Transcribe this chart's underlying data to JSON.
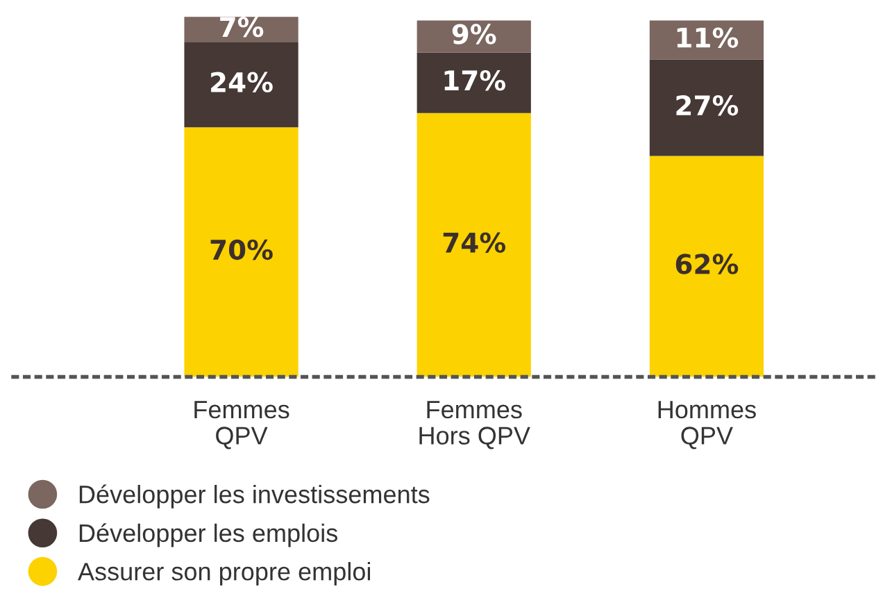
{
  "chart_data": {
    "type": "bar",
    "stacked": true,
    "categories": [
      "Femmes\nQPV",
      "Femmes\nHors QPV",
      "Hommes\nQPV"
    ],
    "series": [
      {
        "name": "Assurer son propre emploi",
        "color": "#fcd200",
        "values": [
          70,
          74,
          62
        ],
        "value_labels": [
          "70%",
          "74%",
          "62%"
        ]
      },
      {
        "name": "Développer les emplois",
        "color": "#453835",
        "values": [
          24,
          17,
          27
        ],
        "value_labels": [
          "24%",
          "17%",
          "27%"
        ]
      },
      {
        "name": "Développer les investissements",
        "color": "#7b6660",
        "values": [
          7,
          9,
          11
        ],
        "value_labels": [
          "7%",
          "9%",
          "11%"
        ]
      }
    ],
    "legend": "bottom",
    "grid": false
  }
}
